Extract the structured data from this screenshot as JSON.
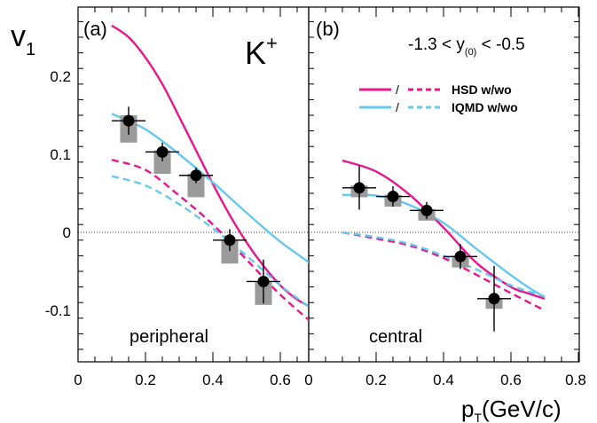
{
  "chart_data": {
    "type": "line",
    "ylabel_main": "v",
    "ylabel_sub": "1",
    "xlabel_main": "p",
    "xlabel_sub": "T",
    "xlabel_unit": "(GeV/c)",
    "xlim": [
      0,
      0.8
    ],
    "ylim": [
      -0.17,
      0.28
    ],
    "x_ticks": [
      0,
      0.2,
      0.4,
      0.6,
      0.8
    ],
    "x_tick_labels_left": [
      "0",
      "0.2",
      "0.4",
      "0.6"
    ],
    "x_tick_labels_right": [
      "0",
      "0.2",
      "0.4",
      "0.6",
      "0.8"
    ],
    "y_ticks": [
      0.2,
      0.1,
      0,
      -0.1
    ],
    "y_tick_labels": [
      "0.2",
      "0.1",
      "0",
      "-0.1"
    ],
    "particle": "K",
    "particle_sup": "+",
    "rapidity_text": "-1.3 < y",
    "rapidity_sub": "(0)",
    "rapidity_end": " < -0.5",
    "colors": {
      "hsd": "#e8168c",
      "iqmd": "#66c8f0",
      "syst": "#9a9a9a",
      "data": "#000000"
    },
    "legend": [
      {
        "slash": "/",
        "label": "HSD w/wo"
      },
      {
        "slash": "/",
        "label": "IQMD w/wo"
      }
    ],
    "panels": [
      {
        "tag": "(a)",
        "centrality": "peripheral",
        "data": [
          {
            "x": 0.15,
            "y": 0.143,
            "yerr": 0.018,
            "xerr": 0.05,
            "syst_lo": 0.115,
            "syst_hi": 0.15
          },
          {
            "x": 0.25,
            "y": 0.103,
            "yerr": 0.012,
            "xerr": 0.05,
            "syst_lo": 0.075,
            "syst_hi": 0.105
          },
          {
            "x": 0.35,
            "y": 0.073,
            "yerr": 0.01,
            "xerr": 0.05,
            "syst_lo": 0.045,
            "syst_hi": 0.075
          },
          {
            "x": 0.45,
            "y": -0.01,
            "yerr": 0.014,
            "xerr": 0.05,
            "syst_lo": -0.04,
            "syst_hi": -0.01
          },
          {
            "x": 0.55,
            "y": -0.063,
            "yerr": 0.028,
            "xerr": 0.05,
            "syst_lo": -0.093,
            "syst_hi": -0.063
          }
        ],
        "curves": [
          {
            "model": "HSD",
            "style": "solid",
            "x": [
              0.1,
              0.15,
              0.2,
              0.25,
              0.3,
              0.35,
              0.4,
              0.45,
              0.5,
              0.55,
              0.6,
              0.65,
              0.7
            ],
            "y": [
              0.265,
              0.25,
              0.224,
              0.19,
              0.148,
              0.105,
              0.062,
              0.022,
              -0.013,
              -0.043,
              -0.068,
              -0.086,
              -0.098
            ]
          },
          {
            "model": "HSD",
            "style": "dashed",
            "x": [
              0.1,
              0.2,
              0.3,
              0.4,
              0.5,
              0.6,
              0.7
            ],
            "y": [
              0.093,
              0.08,
              0.047,
              0.01,
              -0.035,
              -0.08,
              -0.118
            ]
          },
          {
            "model": "IQMD",
            "style": "solid",
            "x": [
              0.1,
              0.2,
              0.3,
              0.4,
              0.5,
              0.6,
              0.7
            ],
            "y": [
              0.152,
              0.132,
              0.1,
              0.064,
              0.025,
              -0.012,
              -0.043
            ]
          },
          {
            "model": "IQMD",
            "style": "dashed",
            "x": [
              0.1,
              0.2,
              0.3,
              0.4,
              0.5,
              0.6,
              0.7
            ],
            "y": [
              0.072,
              0.06,
              0.036,
              0.005,
              -0.03,
              -0.068,
              -0.1
            ]
          }
        ]
      },
      {
        "tag": "(b)",
        "centrality": "central",
        "data": [
          {
            "x": 0.15,
            "y": 0.057,
            "yerr": 0.028,
            "xerr": 0.05,
            "syst_lo": 0.045,
            "syst_hi": 0.06
          },
          {
            "x": 0.25,
            "y": 0.046,
            "yerr": 0.013,
            "xerr": 0.05,
            "syst_lo": 0.033,
            "syst_hi": 0.048
          },
          {
            "x": 0.35,
            "y": 0.028,
            "yerr": 0.011,
            "xerr": 0.05,
            "syst_lo": 0.015,
            "syst_hi": 0.03
          },
          {
            "x": 0.45,
            "y": -0.031,
            "yerr": 0.016,
            "xerr": 0.05,
            "syst_lo": -0.045,
            "syst_hi": -0.03
          },
          {
            "x": 0.55,
            "y": -0.085,
            "yerr": 0.042,
            "xerr": 0.05,
            "syst_lo": -0.098,
            "syst_hi": -0.084
          }
        ],
        "curves": [
          {
            "model": "HSD",
            "style": "solid",
            "x": [
              0.1,
              0.2,
              0.3,
              0.4,
              0.5,
              0.6,
              0.65,
              0.7
            ],
            "y": [
              0.092,
              0.078,
              0.048,
              0.006,
              -0.04,
              -0.07,
              -0.078,
              -0.085
            ]
          },
          {
            "model": "HSD",
            "style": "dashed",
            "x": [
              0.1,
              0.2,
              0.3,
              0.4,
              0.5,
              0.6,
              0.7
            ],
            "y": [
              0.0,
              -0.008,
              -0.017,
              -0.033,
              -0.055,
              -0.078,
              -0.1
            ]
          },
          {
            "model": "IQMD",
            "style": "solid",
            "x": [
              0.1,
              0.2,
              0.3,
              0.4,
              0.5,
              0.6,
              0.65,
              0.7
            ],
            "y": [
              0.048,
              0.047,
              0.035,
              0.012,
              -0.022,
              -0.055,
              -0.07,
              -0.083
            ]
          },
          {
            "model": "IQMD",
            "style": "dashed",
            "x": [
              0.1,
              0.2,
              0.3,
              0.4,
              0.5,
              0.6,
              0.7
            ],
            "y": [
              0.0,
              -0.006,
              -0.015,
              -0.03,
              -0.048,
              -0.068,
              -0.082
            ]
          }
        ]
      }
    ]
  }
}
